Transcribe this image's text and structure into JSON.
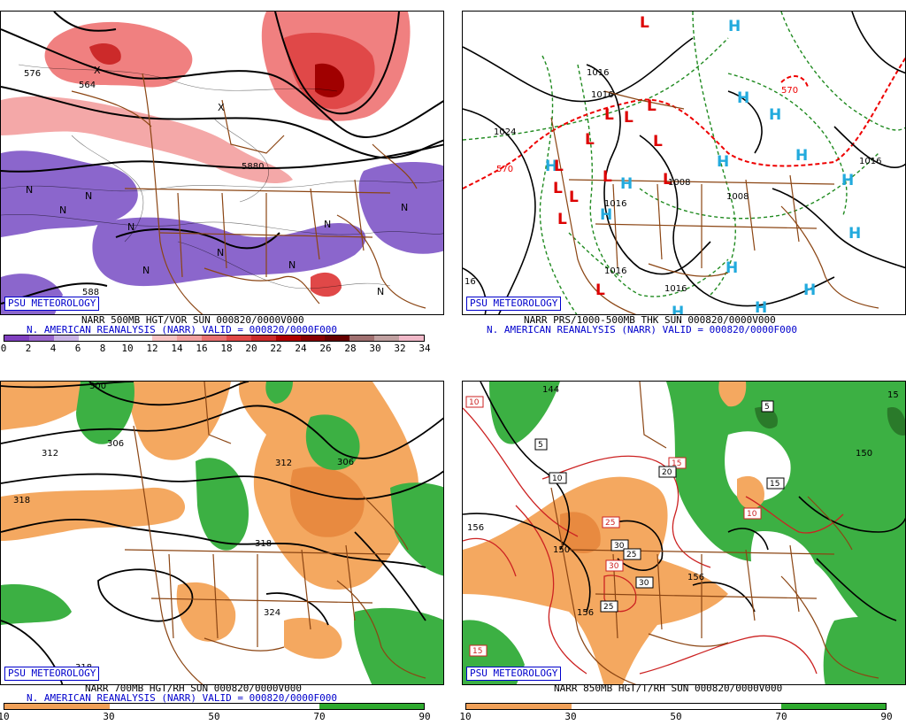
{
  "panels": [
    {
      "id": "p1",
      "badge": "PSU METEOROLOGY",
      "caption1": "NARR 500MB HGT/VOR SUN 000820/0000V000",
      "caption2": "N. AMERICAN REANALYSIS (NARR) VALID = 000820/0000F000",
      "colorbar_colors": [
        "#7f3fbf",
        "#9966cc",
        "#c9b3e6",
        "#ffffff",
        "#ffffff",
        "#ffffff",
        "#f7c4c4",
        "#f0a0a0",
        "#e87070",
        "#e04848",
        "#cc2a2a",
        "#b00000",
        "#880000",
        "#660000",
        "#a07070",
        "#c0a0a0",
        "#f0b8c8"
      ],
      "colorbar_ticks": [
        "0",
        "2",
        "4",
        "6",
        "8",
        "10",
        "12",
        "14",
        "16",
        "18",
        "20",
        "22",
        "24",
        "26",
        "28",
        "30",
        "32",
        "34"
      ],
      "labels": [
        "576",
        "564",
        "588",
        "5880"
      ]
    },
    {
      "id": "p2",
      "badge": "PSU METEOROLOGY",
      "caption1": "NARR PRS/1000-500MB THK SUN 000820/0000V000",
      "caption2": "N. AMERICAN REANALYSIS (NARR) VALID = 000820/0000F000",
      "labels": [
        "1024",
        "1016",
        "1016",
        "1016",
        "1016",
        "1016",
        "1016",
        "570",
        "570",
        "16",
        "1008",
        "1008"
      ],
      "high_color": "#22aadd",
      "low_color": "#dd0000"
    },
    {
      "id": "p3",
      "badge": "PSU METEOROLOGY",
      "caption1": "NARR 700MB HGT/RH SUN 000820/0000V000",
      "caption2": "N. AMERICAN REANALYSIS (NARR) VALID = 000820/0000F000",
      "colorbar_colors": [
        "#f0a058",
        "#ffffff",
        "#ffffff",
        "#2eaa2e"
      ],
      "colorbar_ticks": [
        "10",
        "30",
        "50",
        "70",
        "90"
      ],
      "labels": [
        "300",
        "306",
        "312",
        "318",
        "312",
        "318",
        "324",
        "318",
        "306"
      ]
    },
    {
      "id": "p4",
      "badge": "PSU METEOROLOGY",
      "caption1": "NARR 850MB HGT/T/RH SUN 000820/0000V000",
      "colorbar_colors": [
        "#f0a058",
        "#ffffff",
        "#ffffff",
        "#2eaa2e"
      ],
      "colorbar_ticks": [
        "10",
        "30",
        "50",
        "70",
        "90"
      ],
      "labels": [
        "144",
        "156",
        "150",
        "156",
        "156",
        "150",
        "15"
      ],
      "temp_labels": [
        "10",
        "5",
        "10",
        "15",
        "20",
        "15",
        "25",
        "30",
        "25",
        "30",
        "30",
        "25",
        "10",
        "5",
        "15",
        "15"
      ]
    }
  ],
  "markers": {
    "high": "H",
    "low": "L",
    "vort_min": "N",
    "vort_max": "X"
  }
}
